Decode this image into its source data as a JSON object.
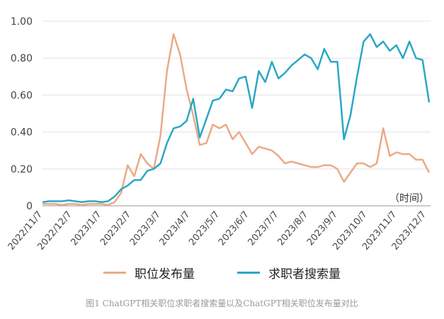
{
  "chart_data": {
    "type": "line",
    "ylim": [
      0,
      1.0
    ],
    "yticks": [
      "0",
      "0.20",
      "0.40",
      "0.60",
      "0.80",
      "1.00"
    ],
    "x_ticks": [
      "2022/11/7",
      "2022/12/7",
      "2023/1/7",
      "2023/2/7",
      "2023/3/7",
      "2023/4/7",
      "2023/5/7",
      "2023/6/7",
      "2023/7/7",
      "2023/8/7",
      "2023/9/7",
      "2023/10/7",
      "2023/11/7",
      "2023/12/7"
    ],
    "x_unit_label": "（时间）",
    "grid": "horizontal",
    "legend_position": "bottom",
    "series": [
      {
        "name": "职位发布量",
        "color": "#EBAA86",
        "values": [
          0.01,
          0.01,
          0.01,
          0.005,
          0.01,
          0.01,
          0.005,
          0.01,
          0.01,
          0.01,
          0.005,
          0.02,
          0.07,
          0.22,
          0.16,
          0.28,
          0.23,
          0.2,
          0.38,
          0.73,
          0.93,
          0.82,
          0.63,
          0.49,
          0.33,
          0.34,
          0.44,
          0.42,
          0.44,
          0.36,
          0.4,
          0.34,
          0.28,
          0.32,
          0.31,
          0.3,
          0.27,
          0.23,
          0.24,
          0.23,
          0.22,
          0.21,
          0.21,
          0.22,
          0.22,
          0.2,
          0.13,
          0.18,
          0.23,
          0.23,
          0.21,
          0.23,
          0.42,
          0.27,
          0.29,
          0.28,
          0.28,
          0.25,
          0.25,
          0.18
        ]
      },
      {
        "name": "求职者搜索量",
        "color": "#2AA8C4",
        "values": [
          0.02,
          0.025,
          0.025,
          0.025,
          0.03,
          0.025,
          0.02,
          0.025,
          0.025,
          0.02,
          0.025,
          0.05,
          0.09,
          0.11,
          0.14,
          0.14,
          0.19,
          0.2,
          0.23,
          0.34,
          0.42,
          0.43,
          0.46,
          0.58,
          0.37,
          0.47,
          0.57,
          0.58,
          0.63,
          0.62,
          0.69,
          0.7,
          0.53,
          0.73,
          0.67,
          0.78,
          0.69,
          0.72,
          0.76,
          0.79,
          0.82,
          0.8,
          0.74,
          0.85,
          0.78,
          0.78,
          0.36,
          0.49,
          0.7,
          0.89,
          0.93,
          0.86,
          0.89,
          0.84,
          0.87,
          0.8,
          0.89,
          0.8,
          0.79,
          0.56
        ]
      }
    ]
  },
  "legend": {
    "series1_label": "职位发布量",
    "series2_label": "求职者搜索量"
  },
  "caption": "图1 ChatGPT相关职位求职者搜索量以及ChatGPT相关职位发布量对比"
}
